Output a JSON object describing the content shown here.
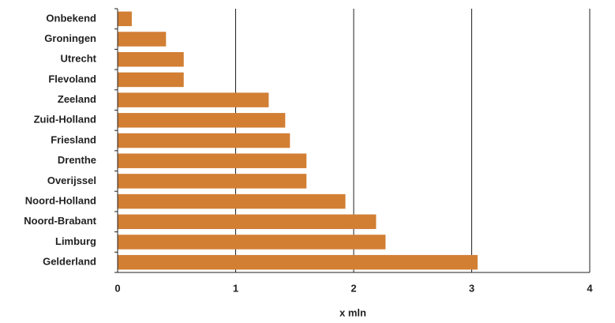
{
  "chart_data": {
    "type": "barh",
    "categories": [
      "Onbekend",
      "Groningen",
      "Utrecht",
      "Flevoland",
      "Zeeland",
      "Zuid-Holland",
      "Friesland",
      "Drenthe",
      "Overijssel",
      "Noord-Holland",
      "Noord-Brabant",
      "Limburg",
      "Gelderland"
    ],
    "values": [
      0.12,
      0.41,
      0.56,
      0.56,
      1.28,
      1.42,
      1.46,
      1.6,
      1.6,
      1.93,
      2.19,
      2.27,
      3.05
    ],
    "color": "#d27f34",
    "xlabel": "x mln",
    "xlim": [
      0,
      4
    ],
    "xticks": [
      0,
      1,
      2,
      3,
      4
    ],
    "grid": true
  }
}
